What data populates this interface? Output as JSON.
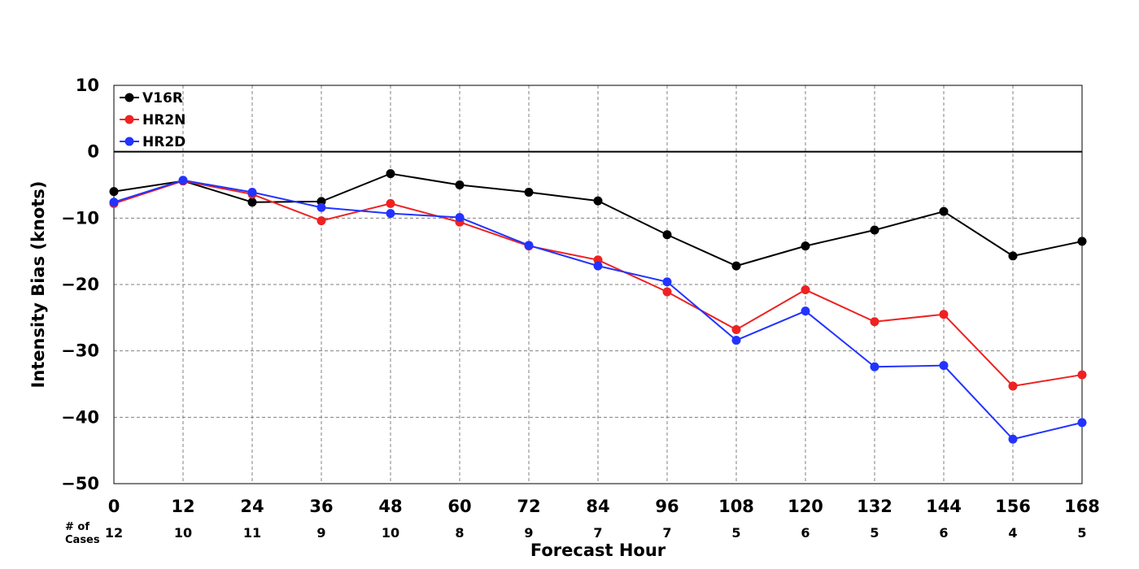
{
  "chart_data": {
    "type": "line",
    "title": "",
    "xlabel": "Forecast Hour",
    "ylabel": "Intensity Bias (knots)",
    "xlim": [
      0,
      168
    ],
    "ylim": [
      -50,
      10
    ],
    "x": [
      0,
      12,
      24,
      36,
      48,
      60,
      72,
      84,
      96,
      108,
      120,
      132,
      144,
      156,
      168
    ],
    "x_ticks": [
      "0",
      "12",
      "24",
      "36",
      "48",
      "60",
      "72",
      "84",
      "96",
      "108",
      "120",
      "132",
      "144",
      "156",
      "168"
    ],
    "y_ticks": [
      10,
      0,
      -10,
      -20,
      -30,
      -40,
      -50
    ],
    "y_tick_labels": [
      "10",
      "0",
      "−10",
      "−20",
      "−30",
      "−40",
      "−50"
    ],
    "grid": true,
    "zero_line": true,
    "legend_position": "top-left",
    "series": [
      {
        "name": "V16R",
        "color": "#000000",
        "values": [
          -6.0,
          -4.4,
          -7.6,
          -7.5,
          -3.3,
          -5.0,
          -6.1,
          -7.4,
          -12.5,
          -17.2,
          -14.2,
          -11.8,
          -9.0,
          -15.7,
          -13.5
        ]
      },
      {
        "name": "HR2N",
        "color": "#ee2222",
        "values": [
          -7.8,
          -4.4,
          -6.4,
          -10.4,
          -7.8,
          -10.6,
          -14.2,
          -16.3,
          -21.1,
          -26.8,
          -20.8,
          -25.6,
          -24.5,
          -35.3,
          -33.6
        ]
      },
      {
        "name": "HR2D",
        "color": "#2233ff",
        "values": [
          -7.6,
          -4.3,
          -6.1,
          -8.4,
          -9.3,
          -9.9,
          -14.1,
          -17.2,
          -19.6,
          -28.4,
          -24.0,
          -32.4,
          -32.2,
          -43.3,
          -40.8
        ]
      }
    ],
    "cases_label": "# of\nCases",
    "cases_label_lines": [
      "# of",
      "Cases"
    ],
    "cases": [
      "12",
      "10",
      "11",
      "9",
      "10",
      "8",
      "9",
      "7",
      "7",
      "5",
      "6",
      "5",
      "6",
      "4",
      "5"
    ]
  }
}
